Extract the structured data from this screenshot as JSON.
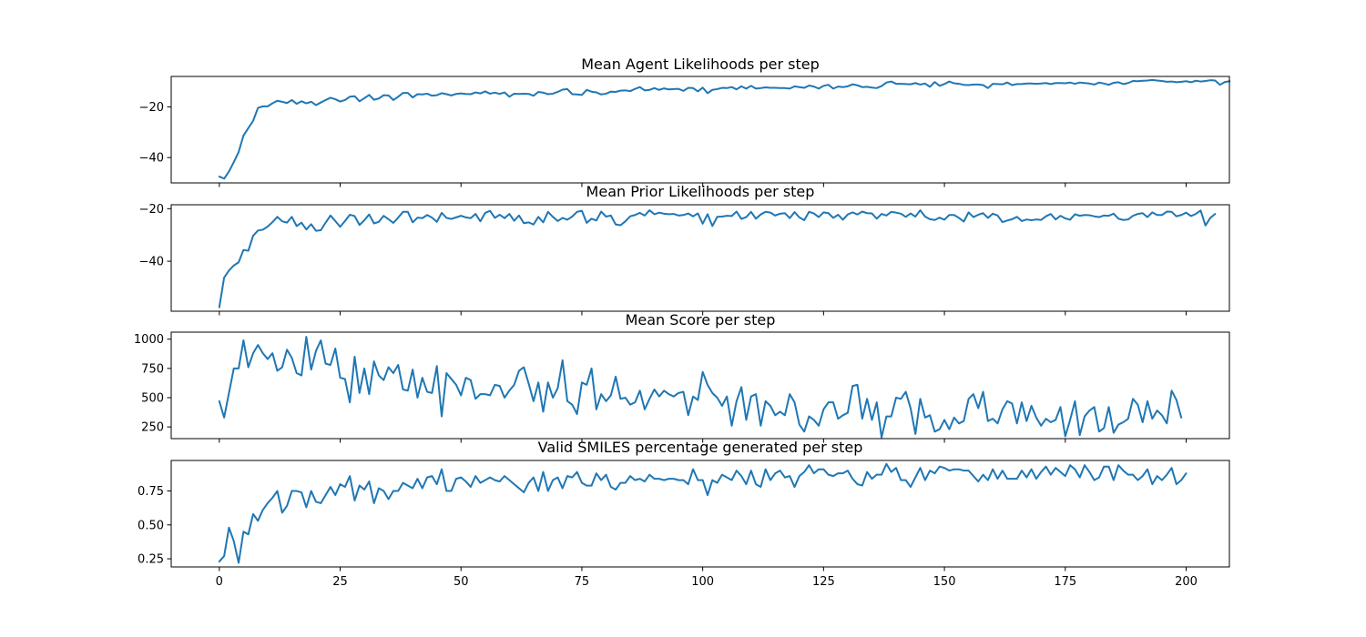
{
  "chart_data": [
    {
      "type": "line",
      "title": "Mean Agent Likelihoods per step",
      "xlim": [
        -9.95,
        208.95
      ],
      "ylim": [
        -50,
        -8
      ],
      "yticks": [
        -40,
        -20
      ],
      "ytick_labels": [
        "−40",
        "−20"
      ],
      "series": [
        {
          "name": "agent_likelihood",
          "color": "#1f77b4",
          "x0": 0,
          "values": [
            -47.5,
            -48.3,
            -45.5,
            -41.8,
            -37.8,
            -31.3,
            -28.4,
            -25.5,
            -20.4,
            -19.8,
            -19.8,
            -18.6,
            -17.6,
            -18.0,
            -18.5,
            -17.3,
            -18.8,
            -17.8,
            -18.6,
            -18.0,
            -19.3,
            -18.3,
            -17.3,
            -16.4,
            -17.0,
            -17.9,
            -17.3,
            -16.0,
            -15.8,
            -17.8,
            -16.6,
            -15.3,
            -17.2,
            -16.7,
            -15.4,
            -15.5,
            -17.3,
            -16.0,
            -14.5,
            -14.5,
            -16.3,
            -15.0,
            -15.1,
            -14.8,
            -15.6,
            -15.4,
            -14.6,
            -15.0,
            -15.5,
            -14.9,
            -14.7,
            -14.9,
            -15.0,
            -14.3,
            -14.7,
            -13.9,
            -14.8,
            -14.4,
            -14.9,
            -14.3,
            -16.0,
            -14.8,
            -14.9,
            -14.8,
            -14.9,
            -15.6,
            -14.1,
            -14.4,
            -15.0,
            -14.8,
            -14.1,
            -13.2,
            -13.0,
            -15.0,
            -15.1,
            -15.3,
            -13.3,
            -14.0,
            -14.3,
            -15.1,
            -14.8,
            -14.0,
            -14.1,
            -13.6,
            -13.5,
            -13.8,
            -12.9,
            -12.2,
            -13.5,
            -13.3,
            -12.6,
            -13.3,
            -12.7,
            -13.1,
            -13.0,
            -12.9,
            -13.7,
            -12.5,
            -12.6,
            -13.9,
            -12.4,
            -14.6,
            -13.3,
            -13.0,
            -12.5,
            -12.6,
            -12.2,
            -13.1,
            -11.9,
            -12.8,
            -11.7,
            -12.8,
            -12.6,
            -12.3,
            -12.5,
            -12.5,
            -12.6,
            -12.6,
            -12.8,
            -11.9,
            -12.2,
            -12.5,
            -11.6,
            -12.0,
            -12.8,
            -11.7,
            -11.3,
            -12.8,
            -12.0,
            -12.2,
            -11.9,
            -11.1,
            -11.5,
            -12.2,
            -12.1,
            -12.4,
            -12.6,
            -11.8,
            -10.4,
            -10.0,
            -10.9,
            -10.9,
            -11.0,
            -11.1,
            -10.6,
            -11.2,
            -10.8,
            -12.1,
            -10.2,
            -11.7,
            -11.0,
            -10.0,
            -10.7,
            -10.9,
            -11.3,
            -11.4,
            -11.2,
            -11.2,
            -11.4,
            -12.6,
            -10.9,
            -11.0,
            -11.1,
            -10.4,
            -11.4,
            -11.0,
            -11.0,
            -10.8,
            -10.8,
            -10.9,
            -10.8,
            -10.6,
            -11.0,
            -10.6,
            -10.6,
            -10.7,
            -10.4,
            -10.9,
            -10.4,
            -10.6,
            -10.8,
            -11.2,
            -10.4,
            -10.8,
            -11.3,
            -10.5,
            -10.3,
            -11.0,
            -10.6,
            -9.8,
            -9.9,
            -9.7,
            -9.6,
            -9.4,
            -9.6,
            -9.8,
            -10.1,
            -10.0,
            -10.3,
            -10.1,
            -9.9,
            -10.3,
            -9.7,
            -10.0,
            -9.8,
            -9.5,
            -9.6,
            -11.3,
            -10.2,
            -9.9
          ]
        }
      ]
    },
    {
      "type": "line",
      "title": "Mean Prior Likelihoods per step",
      "xlim": [
        -9.95,
        208.95
      ],
      "ylim": [
        -59,
        -18.5
      ],
      "yticks": [
        -40,
        -20
      ],
      "ytick_labels": [
        "−40",
        "−20"
      ],
      "series": [
        {
          "name": "prior_likelihood",
          "color": "#1f77b4",
          "x0": 0,
          "values": [
            -57.5,
            -46.2,
            -43.5,
            -41.6,
            -40.4,
            -35.7,
            -36.0,
            -30.3,
            -28.3,
            -28.0,
            -26.8,
            -25.1,
            -23.1,
            -24.8,
            -25.3,
            -23.1,
            -26.6,
            -25.3,
            -27.9,
            -25.9,
            -28.4,
            -28.2,
            -25.3,
            -22.6,
            -24.7,
            -26.9,
            -24.7,
            -22.3,
            -22.8,
            -26.2,
            -24.4,
            -22.2,
            -25.6,
            -25.0,
            -22.7,
            -24.0,
            -25.4,
            -23.4,
            -21.2,
            -21.2,
            -25.2,
            -23.4,
            -23.6,
            -22.4,
            -23.4,
            -25.0,
            -21.6,
            -23.5,
            -23.9,
            -23.3,
            -22.7,
            -23.3,
            -23.6,
            -22.0,
            -24.8,
            -21.6,
            -20.8,
            -23.5,
            -22.3,
            -23.6,
            -22.0,
            -24.6,
            -22.6,
            -25.5,
            -25.2,
            -26.0,
            -23.1,
            -25.2,
            -21.2,
            -23.1,
            -24.7,
            -23.5,
            -24.2,
            -23.0,
            -21.2,
            -20.8,
            -25.4,
            -23.8,
            -24.5,
            -21.1,
            -23.0,
            -22.6,
            -26.0,
            -26.3,
            -24.8,
            -22.9,
            -22.4,
            -21.6,
            -22.6,
            -20.6,
            -22.1,
            -21.5,
            -21.9,
            -22.1,
            -22.0,
            -22.6,
            -22.4,
            -21.8,
            -22.9,
            -21.8,
            -25.7,
            -22.1,
            -26.6,
            -23.1,
            -23.0,
            -22.7,
            -22.8,
            -21.1,
            -23.9,
            -23.2,
            -21.2,
            -23.8,
            -22.2,
            -21.2,
            -21.5,
            -22.6,
            -21.9,
            -21.7,
            -23.6,
            -21.3,
            -23.3,
            -24.4,
            -21.2,
            -21.8,
            -23.2,
            -21.4,
            -21.7,
            -23.5,
            -22.3,
            -24.2,
            -22.2,
            -21.4,
            -22.2,
            -21.1,
            -21.7,
            -21.8,
            -23.8,
            -22.0,
            -22.6,
            -21.2,
            -21.5,
            -21.9,
            -23.1,
            -21.8,
            -23.0,
            -20.6,
            -23.0,
            -24.0,
            -24.3,
            -23.4,
            -24.2,
            -22.4,
            -22.4,
            -23.5,
            -24.9,
            -21.4,
            -23.2,
            -22.3,
            -21.7,
            -23.5,
            -21.9,
            -22.6,
            -25.1,
            -24.5,
            -24.0,
            -23.1,
            -24.7,
            -24.1,
            -24.4,
            -24.1,
            -24.3,
            -22.9,
            -22.0,
            -24.1,
            -22.7,
            -23.7,
            -24.2,
            -22.1,
            -22.7,
            -22.4,
            -22.5,
            -22.9,
            -23.2,
            -22.6,
            -22.7,
            -21.9,
            -23.8,
            -24.3,
            -24.1,
            -22.7,
            -22.0,
            -21.7,
            -23.2,
            -21.4,
            -22.4,
            -22.4,
            -21.1,
            -21.2,
            -22.9,
            -22.4,
            -21.5,
            -22.8,
            -22.0,
            -20.7,
            -26.4,
            -23.5,
            -22.0
          ]
        }
      ]
    },
    {
      "type": "line",
      "title": "Mean Score per step",
      "xlim": [
        -9.95,
        208.95
      ],
      "ylim": [
        150,
        1060
      ],
      "yticks": [
        250,
        500,
        750,
        1000
      ],
      "ytick_labels": [
        "250",
        "500",
        "750",
        "1000"
      ],
      "series": [
        {
          "name": "score",
          "color": "#1f77b4",
          "x0": 0,
          "values": [
            470,
            330,
            540,
            750,
            750,
            990,
            760,
            880,
            950,
            880,
            830,
            880,
            730,
            760,
            910,
            840,
            710,
            690,
            1020,
            740,
            900,
            990,
            790,
            780,
            920,
            670,
            660,
            460,
            850,
            540,
            750,
            530,
            810,
            690,
            650,
            760,
            710,
            780,
            570,
            560,
            740,
            500,
            670,
            550,
            540,
            770,
            340,
            710,
            660,
            610,
            520,
            670,
            650,
            490,
            530,
            530,
            520,
            610,
            600,
            500,
            560,
            610,
            730,
            760,
            620,
            470,
            630,
            380,
            630,
            500,
            580,
            820,
            470,
            440,
            360,
            630,
            610,
            750,
            400,
            530,
            470,
            520,
            680,
            490,
            500,
            440,
            460,
            560,
            400,
            490,
            570,
            510,
            560,
            530,
            510,
            540,
            550,
            350,
            510,
            480,
            720,
            610,
            540,
            500,
            430,
            510,
            260,
            470,
            590,
            310,
            510,
            530,
            260,
            470,
            430,
            350,
            380,
            350,
            530,
            460,
            270,
            210,
            340,
            310,
            260,
            400,
            460,
            460,
            320,
            350,
            370,
            600,
            610,
            320,
            490,
            310,
            460,
            160,
            340,
            340,
            500,
            490,
            550,
            410,
            190,
            490,
            330,
            350,
            210,
            230,
            310,
            230,
            330,
            280,
            300,
            490,
            530,
            410,
            550,
            300,
            320,
            280,
            400,
            470,
            450,
            280,
            460,
            300,
            430,
            330,
            260,
            320,
            290,
            310,
            420,
            170,
            310,
            470,
            180,
            340,
            390,
            420,
            210,
            240,
            420,
            200,
            270,
            290,
            320,
            490,
            440,
            290,
            470,
            320,
            390,
            350,
            280,
            560,
            480,
            330
          ]
        }
      ]
    },
    {
      "type": "line",
      "title": "Valid SMILES percentage generated per step",
      "xlim": [
        -9.95,
        208.95
      ],
      "ylim": [
        0.19,
        0.975
      ],
      "yticks": [
        0.25,
        0.5,
        0.75
      ],
      "ytick_labels": [
        "0.25",
        "0.50",
        "0.75"
      ],
      "series": [
        {
          "name": "valid_smiles",
          "color": "#1f77b4",
          "x0": 0,
          "values": [
            0.23,
            0.27,
            0.48,
            0.38,
            0.22,
            0.45,
            0.43,
            0.58,
            0.53,
            0.61,
            0.66,
            0.7,
            0.75,
            0.59,
            0.64,
            0.75,
            0.75,
            0.74,
            0.63,
            0.75,
            0.67,
            0.66,
            0.72,
            0.78,
            0.72,
            0.8,
            0.78,
            0.86,
            0.68,
            0.79,
            0.76,
            0.82,
            0.66,
            0.77,
            0.75,
            0.69,
            0.75,
            0.75,
            0.81,
            0.79,
            0.77,
            0.84,
            0.77,
            0.85,
            0.86,
            0.8,
            0.91,
            0.75,
            0.75,
            0.84,
            0.85,
            0.82,
            0.78,
            0.86,
            0.81,
            0.83,
            0.85,
            0.83,
            0.82,
            0.86,
            0.83,
            0.8,
            0.77,
            0.74,
            0.81,
            0.85,
            0.75,
            0.89,
            0.75,
            0.83,
            0.85,
            0.77,
            0.86,
            0.85,
            0.89,
            0.81,
            0.79,
            0.79,
            0.88,
            0.83,
            0.87,
            0.78,
            0.76,
            0.81,
            0.81,
            0.86,
            0.83,
            0.84,
            0.82,
            0.87,
            0.84,
            0.84,
            0.83,
            0.84,
            0.84,
            0.83,
            0.83,
            0.8,
            0.91,
            0.83,
            0.83,
            0.72,
            0.83,
            0.81,
            0.87,
            0.85,
            0.83,
            0.9,
            0.86,
            0.8,
            0.9,
            0.8,
            0.78,
            0.91,
            0.83,
            0.88,
            0.9,
            0.85,
            0.86,
            0.78,
            0.86,
            0.89,
            0.94,
            0.88,
            0.91,
            0.91,
            0.87,
            0.86,
            0.88,
            0.88,
            0.9,
            0.84,
            0.8,
            0.79,
            0.89,
            0.84,
            0.87,
            0.87,
            0.95,
            0.89,
            0.92,
            0.83,
            0.83,
            0.78,
            0.85,
            0.92,
            0.83,
            0.9,
            0.88,
            0.93,
            0.92,
            0.9,
            0.91,
            0.91,
            0.9,
            0.9,
            0.86,
            0.82,
            0.87,
            0.83,
            0.91,
            0.84,
            0.9,
            0.84,
            0.84,
            0.84,
            0.9,
            0.85,
            0.91,
            0.84,
            0.89,
            0.93,
            0.87,
            0.92,
            0.89,
            0.86,
            0.94,
            0.91,
            0.85,
            0.94,
            0.89,
            0.83,
            0.85,
            0.93,
            0.93,
            0.83,
            0.94,
            0.9,
            0.87,
            0.87,
            0.83,
            0.86,
            0.91,
            0.8,
            0.86,
            0.83,
            0.87,
            0.92,
            0.8,
            0.83,
            0.88
          ]
        }
      ]
    }
  ],
  "shared_x": {
    "ticks": [
      0,
      25,
      50,
      75,
      100,
      125,
      150,
      175,
      200
    ],
    "tick_labels": [
      "0",
      "25",
      "50",
      "75",
      "100",
      "125",
      "150",
      "175",
      "200"
    ]
  }
}
